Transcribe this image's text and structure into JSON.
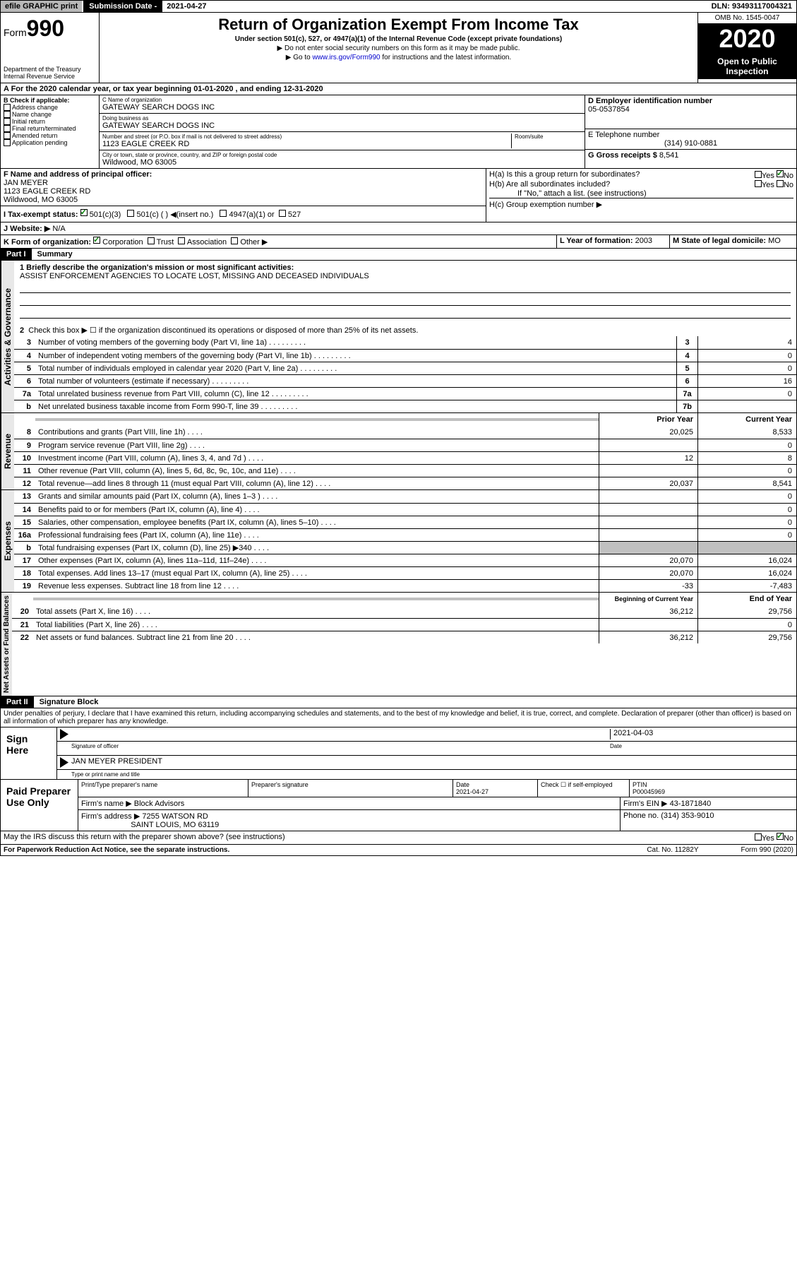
{
  "topbar": {
    "efile": "efile GRAPHIC print",
    "subdate_label": "Submission Date - ",
    "subdate": "2021-04-27",
    "dln": "DLN: 93493117004321"
  },
  "header": {
    "form": "Form",
    "num": "990",
    "dept": "Department of the Treasury\nInternal Revenue Service",
    "title": "Return of Organization Exempt From Income Tax",
    "subtitle": "Under section 501(c), 527, or 4947(a)(1) of the Internal Revenue Code (except private foundations)",
    "sub1": "▶ Do not enter social security numbers on this form as it may be made public.",
    "sub2": "▶ Go to www.irs.gov/Form990 for instructions and the latest information.",
    "omb": "OMB No. 1545-0047",
    "year": "2020",
    "open": "Open to Public Inspection"
  },
  "period": "A For the 2020 calendar year, or tax year beginning 01-01-2020    , and ending 12-31-2020",
  "b": {
    "label": "B Check if applicable:",
    "items": [
      "Address change",
      "Name change",
      "Initial return",
      "Final return/terminated",
      "Amended return",
      "Application pending"
    ]
  },
  "c": {
    "name_label": "C Name of organization",
    "name": "GATEWAY SEARCH DOGS INC",
    "dba_label": "Doing business as",
    "dba": "GATEWAY SEARCH DOGS INC",
    "addr_label": "Number and street (or P.O. box if mail is not delivered to street address)",
    "addr": "1123 EAGLE CREEK RD",
    "room_label": "Room/suite",
    "city_label": "City or town, state or province, country, and ZIP or foreign postal code",
    "city": "Wildwood, MO  63005"
  },
  "d": {
    "label": "D Employer identification number",
    "ein": "05-0537854"
  },
  "e": {
    "label": "E Telephone number",
    "phone": "(314) 910-0881"
  },
  "g": {
    "label": "G Gross receipts $",
    "val": "8,541"
  },
  "f": {
    "label": "F  Name and address of principal officer:",
    "name": "JAN MEYER",
    "addr1": "1123 EAGLE CREEK RD",
    "addr2": "Wildwood, MO  63005"
  },
  "h": {
    "a": "H(a)  Is this a group return for subordinates?",
    "b": "H(b)  Are all subordinates included?",
    "note": "If \"No,\" attach a list. (see instructions)",
    "c": "H(c)  Group exemption number ▶"
  },
  "i": {
    "label": "I  Tax-exempt status:",
    "opts": [
      "501(c)(3)",
      "501(c) (  ) ◀(insert no.)",
      "4947(a)(1) or",
      "527"
    ]
  },
  "j": {
    "label": "J   Website: ▶",
    "val": "N/A"
  },
  "k": {
    "label": "K Form of organization:",
    "opts": [
      "Corporation",
      "Trust",
      "Association",
      "Other ▶"
    ]
  },
  "l": {
    "label": "L Year of formation:",
    "val": "2003"
  },
  "m": {
    "label": "M State of legal domicile:",
    "val": "MO"
  },
  "partI": {
    "title": "Part I",
    "sub": "Summary"
  },
  "mission": {
    "label": "1  Briefly describe the organization's mission or most significant activities:",
    "text": "ASSIST ENFORCEMENT AGENCIES TO LOCATE LOST, MISSING AND DECEASED INDIVIDUALS"
  },
  "line2": "Check this box ▶ ☐ if the organization discontinued its operations or disposed of more than 25% of its net assets.",
  "governance_label": "Activities & Governance",
  "revenue_label": "Revenue",
  "expenses_label": "Expenses",
  "netassets_label": "Net Assets or Fund Balances",
  "gov_lines": [
    {
      "n": "3",
      "t": "Number of voting members of the governing body (Part VI, line 1a)",
      "box": "3",
      "v": "4"
    },
    {
      "n": "4",
      "t": "Number of independent voting members of the governing body (Part VI, line 1b)",
      "box": "4",
      "v": "0"
    },
    {
      "n": "5",
      "t": "Total number of individuals employed in calendar year 2020 (Part V, line 2a)",
      "box": "5",
      "v": "0"
    },
    {
      "n": "6",
      "t": "Total number of volunteers (estimate if necessary)",
      "box": "6",
      "v": "16"
    },
    {
      "n": "7a",
      "t": "Total unrelated business revenue from Part VIII, column (C), line 12",
      "box": "7a",
      "v": "0"
    },
    {
      "n": "b",
      "t": "Net unrelated business taxable income from Form 990-T, line 39",
      "box": "7b",
      "v": ""
    }
  ],
  "col_headers": {
    "py": "Prior Year",
    "cy": "Current Year",
    "boy": "Beginning of Current Year",
    "eoy": "End of Year"
  },
  "rev_lines": [
    {
      "n": "8",
      "t": "Contributions and grants (Part VIII, line 1h)",
      "py": "20,025",
      "cy": "8,533"
    },
    {
      "n": "9",
      "t": "Program service revenue (Part VIII, line 2g)",
      "py": "",
      "cy": "0"
    },
    {
      "n": "10",
      "t": "Investment income (Part VIII, column (A), lines 3, 4, and 7d )",
      "py": "12",
      "cy": "8"
    },
    {
      "n": "11",
      "t": "Other revenue (Part VIII, column (A), lines 5, 6d, 8c, 9c, 10c, and 11e)",
      "py": "",
      "cy": "0"
    },
    {
      "n": "12",
      "t": "Total revenue—add lines 8 through 11 (must equal Part VIII, column (A), line 12)",
      "py": "20,037",
      "cy": "8,541"
    }
  ],
  "exp_lines": [
    {
      "n": "13",
      "t": "Grants and similar amounts paid (Part IX, column (A), lines 1–3 )",
      "py": "",
      "cy": "0"
    },
    {
      "n": "14",
      "t": "Benefits paid to or for members (Part IX, column (A), line 4)",
      "py": "",
      "cy": "0"
    },
    {
      "n": "15",
      "t": "Salaries, other compensation, employee benefits (Part IX, column (A), lines 5–10)",
      "py": "",
      "cy": "0"
    },
    {
      "n": "16a",
      "t": "Professional fundraising fees (Part IX, column (A), line 11e)",
      "py": "",
      "cy": "0"
    },
    {
      "n": "b",
      "t": "Total fundraising expenses (Part IX, column (D), line 25) ▶340",
      "py": "shaded",
      "cy": "shaded"
    },
    {
      "n": "17",
      "t": "Other expenses (Part IX, column (A), lines 11a–11d, 11f–24e)",
      "py": "20,070",
      "cy": "16,024"
    },
    {
      "n": "18",
      "t": "Total expenses. Add lines 13–17 (must equal Part IX, column (A), line 25)",
      "py": "20,070",
      "cy": "16,024"
    },
    {
      "n": "19",
      "t": "Revenue less expenses. Subtract line 18 from line 12",
      "py": "-33",
      "cy": "-7,483"
    }
  ],
  "net_lines": [
    {
      "n": "20",
      "t": "Total assets (Part X, line 16)",
      "py": "36,212",
      "cy": "29,756"
    },
    {
      "n": "21",
      "t": "Total liabilities (Part X, line 26)",
      "py": "",
      "cy": "0"
    },
    {
      "n": "22",
      "t": "Net assets or fund balances. Subtract line 21 from line 20",
      "py": "36,212",
      "cy": "29,756"
    }
  ],
  "partII": {
    "title": "Part II",
    "sub": "Signature Block"
  },
  "perjury": "Under penalties of perjury, I declare that I have examined this return, including accompanying schedules and statements, and to the best of my knowledge and belief, it is true, correct, and complete. Declaration of preparer (other than officer) is based on all information of which preparer has any knowledge.",
  "sign": {
    "here": "Sign Here",
    "sig_label": "Signature of officer",
    "date": "2021-04-03",
    "date_label": "Date",
    "name": "JAN MEYER  PRESIDENT",
    "name_label": "Type or print name and title"
  },
  "paid": {
    "title": "Paid Preparer Use Only",
    "h1": "Print/Type preparer's name",
    "h2": "Preparer's signature",
    "h3": "Date",
    "h3v": "2021-04-27",
    "h4": "Check ☐ if self-employed",
    "h5": "PTIN",
    "h5v": "P00045969",
    "firm_label": "Firm's name    ▶",
    "firm": "Block Advisors",
    "ein_label": "Firm's EIN ▶",
    "ein": "43-1871840",
    "addr_label": "Firm's address ▶",
    "addr": "7255 WATSON RD",
    "addr2": "SAINT LOUIS, MO  63119",
    "phone_label": "Phone no.",
    "phone": "(314) 353-9010"
  },
  "discuss": "May the IRS discuss this return with the preparer shown above? (see instructions)",
  "footer": {
    "pra": "For Paperwork Reduction Act Notice, see the separate instructions.",
    "cat": "Cat. No. 11282Y",
    "form": "Form 990 (2020)"
  }
}
